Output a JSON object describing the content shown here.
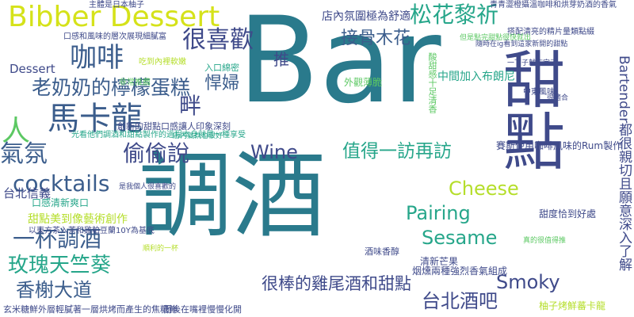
{
  "cloud": {
    "words": [
      {
        "text": "Bar",
        "color": "#2a7a8c"
      },
      {
        "text": "調酒",
        "color": "#2a7a8c"
      },
      {
        "text": "甜點",
        "color": "#3f4a8a"
      },
      {
        "text": "Bibber Dessert",
        "color": "#d5e21a"
      },
      {
        "text": "馬卡龍",
        "color": "#3b5d8c"
      },
      {
        "text": "咖啡",
        "color": "#3b5d8c"
      },
      {
        "text": "很喜歡",
        "color": "#3f4a8a"
      },
      {
        "text": "松花黎祈",
        "color": "#26a68a"
      },
      {
        "text": "接骨木花",
        "color": "#3b5d8c"
      },
      {
        "text": "老奶奶的檸檬蛋糕",
        "color": "#3b5d8c"
      },
      {
        "text": "人",
        "color": "#5cc863"
      },
      {
        "text": "氣氛",
        "color": "#3b5d8c"
      },
      {
        "text": "偷偷說",
        "color": "#3f4a8a"
      },
      {
        "text": "悍婦",
        "color": "#3b5d8c"
      },
      {
        "text": "畔",
        "color": "#3f4a8a"
      },
      {
        "text": "推",
        "color": "#3f4a8a"
      },
      {
        "text": "Wine",
        "color": "#3f4a8a"
      },
      {
        "text": "值得一訪再訪",
        "color": "#26a68a"
      },
      {
        "text": "cocktails",
        "color": "#3b5d8c"
      },
      {
        "text": "一杯調酒",
        "color": "#3b5d8c"
      },
      {
        "text": "玫瑰天竺葵",
        "color": "#26a68a"
      },
      {
        "text": "香榭大道",
        "color": "#3b5d8c"
      },
      {
        "text": "很棒的雞尾酒和甜點",
        "color": "#3f4a8a"
      },
      {
        "text": "台北酒吧",
        "color": "#3f4a8a"
      },
      {
        "text": "Cheese",
        "color": "#b5de2b"
      },
      {
        "text": "Pairing",
        "color": "#26a68a"
      },
      {
        "text": "Sesame",
        "color": "#26a68a"
      },
      {
        "text": "Smoky",
        "color": "#3f4a8a"
      },
      {
        "text": "台北信義",
        "color": "#3f4a8a"
      },
      {
        "text": "Dessert",
        "color": "#3f4a8a"
      },
      {
        "text": "店內氛圍極為舒適",
        "color": "#3f4a8a"
      },
      {
        "text": "主體是日本柚子",
        "color": "#3f4a8a"
      },
      {
        "text": "甜點美到像藝術創作",
        "color": "#b5de2b"
      },
      {
        "text": "以東方茶入茶和雞粕豆蘭10Y為基底",
        "color": "#3f4a8a"
      },
      {
        "text": "Bartender都很親切且願意深入了解",
        "color": "#3f4a8a"
      },
      {
        "text": "酸甜感十足清香",
        "color": "#5cc863"
      },
      {
        "text": "吃到內裡軟嫩",
        "color": "#b5de2b"
      },
      {
        "text": "口感和風味的層次展現細膩富",
        "color": "#3f4a8a"
      },
      {
        "text": "青青澀橙攝溫咖啡和烘芽奶酒的香氣",
        "color": "#3f4a8a"
      },
      {
        "text": "搭配清亮的精片量類點綴",
        "color": "#3f4a8a"
      },
      {
        "text": "隨時在ig看到這家新開的甜點",
        "color": "#3f4a8a"
      },
      {
        "text": "但是點完甜點很快就出",
        "color": "#5cc863"
      },
      {
        "text": "一下子就吃完了",
        "color": "#3f4a8a"
      },
      {
        "text": "中間加入布朗尼",
        "color": "#26a68a"
      },
      {
        "text": "外觀薄脆",
        "color": "#5cc863"
      },
      {
        "text": "入口綿密",
        "color": "#26a68a"
      },
      {
        "text": "光看他們調酒和甜點製作的過程本身就是一種享受",
        "color": "#26a68a"
      },
      {
        "text": "創新的甜點口感讓人印象深刻",
        "color": "#3f4a8a"
      },
      {
        "text": "口感清新爽口",
        "color": "#26a68a"
      },
      {
        "text": "賽斯使用咖啡風味的Rum製作",
        "color": "#3f4a8a"
      },
      {
        "text": "非常推薦",
        "color": "#5cc863"
      },
      {
        "text": "甜度恰到好處",
        "color": "#3f4a8a"
      },
      {
        "text": "清新芒果",
        "color": "#3f4a8a"
      },
      {
        "text": "烟燻兩種強烈香氣組成",
        "color": "#3f4a8a"
      },
      {
        "text": "酒味香醇",
        "color": "#3f4a8a"
      },
      {
        "text": "柚子烤鮮蕃卡龍",
        "color": "#b5de2b"
      },
      {
        "text": "玄米糖鮮外層輕膩著一層烘烤而產生的焦糖鮮",
        "color": "#3f4a8a"
      },
      {
        "text": "而後在嘴裡慢慢化開",
        "color": "#3f4a8a"
      },
      {
        "text": "中東風味",
        "color": "#3f4a8a"
      },
      {
        "text": "很適合",
        "color": "#3f4a8a"
      },
      {
        "text": "是我個人很喜歡的",
        "color": "#3f4a8a"
      },
      {
        "text": "順利的一杯",
        "color": "#b5de2b"
      },
      {
        "text": "真的很值得推",
        "color": "#5cc863"
      },
      {
        "text": "店內氣氛也很好",
        "color": "#26a68a"
      }
    ]
  }
}
